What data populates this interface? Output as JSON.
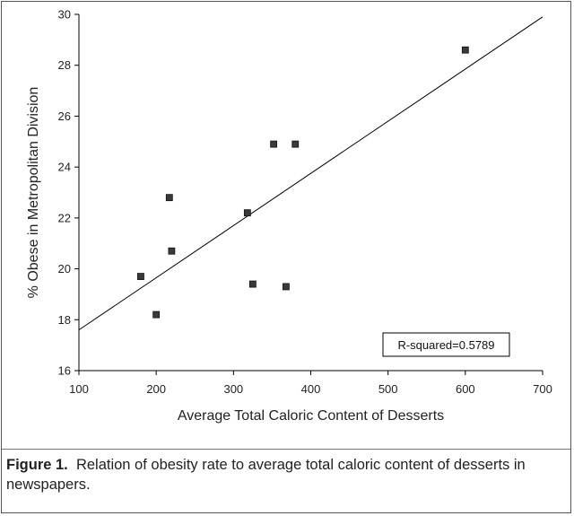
{
  "chart_data": {
    "type": "scatter",
    "xlabel": "Average Total Caloric Content of Desserts",
    "ylabel": "% Obese in Metropolitan Division",
    "xlim": [
      100,
      700
    ],
    "ylim": [
      16,
      30
    ],
    "xticks": [
      100,
      200,
      300,
      400,
      500,
      600,
      700
    ],
    "yticks": [
      16,
      18,
      20,
      22,
      24,
      26,
      28,
      30
    ],
    "grid": false,
    "points": [
      {
        "x": 180,
        "y": 19.7
      },
      {
        "x": 200,
        "y": 18.2
      },
      {
        "x": 217,
        "y": 22.8
      },
      {
        "x": 220,
        "y": 20.7
      },
      {
        "x": 318,
        "y": 22.2
      },
      {
        "x": 325,
        "y": 19.4
      },
      {
        "x": 352,
        "y": 24.9
      },
      {
        "x": 368,
        "y": 19.3
      },
      {
        "x": 380,
        "y": 24.9
      },
      {
        "x": 600,
        "y": 28.6
      }
    ],
    "trendline": {
      "x": [
        100,
        700
      ],
      "y": [
        17.6,
        29.9
      ]
    },
    "annotation": "R-squared=0.5789"
  },
  "caption": {
    "label": "Figure 1.",
    "text": "Relation of obesity rate to average total caloric content of desserts in newspapers."
  }
}
